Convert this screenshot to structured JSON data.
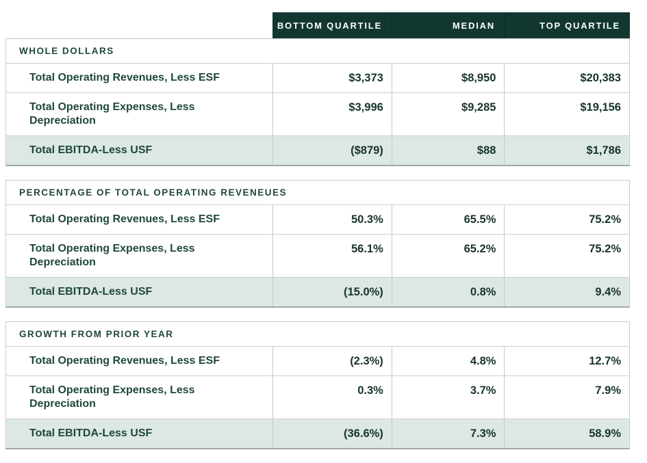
{
  "table": {
    "columns": [
      "BOTTOM QUARTILE",
      "MEDIAN",
      "TOP QUARTILE"
    ],
    "sections": [
      {
        "title": "WHOLE DOLLARS",
        "rows": [
          {
            "label": "Total Operating Revenues, Less ESF",
            "values": [
              "$3,373",
              "$8,950",
              "$20,383"
            ],
            "highlight": false
          },
          {
            "label": "Total Operating Expenses, Less Depreciation",
            "values": [
              "$3,996",
              "$9,285",
              "$19,156"
            ],
            "highlight": false
          },
          {
            "label": "Total EBITDA-Less USF",
            "values": [
              "($879)",
              "$88",
              "$1,786"
            ],
            "highlight": true
          }
        ]
      },
      {
        "title": "PERCENTAGE OF TOTAL OPERATING REVENEUES",
        "rows": [
          {
            "label": "Total Operating Revenues, Less ESF",
            "values": [
              "50.3%",
              "65.5%",
              "75.2%"
            ],
            "highlight": false
          },
          {
            "label": "Total Operating Expenses, Less Depreciation",
            "values": [
              "56.1%",
              "65.2%",
              "75.2%"
            ],
            "highlight": false
          },
          {
            "label": "Total EBITDA-Less USF",
            "values": [
              "(15.0%)",
              "0.8%",
              "9.4%"
            ],
            "highlight": true
          }
        ]
      },
      {
        "title": "GROWTH FROM PRIOR YEAR",
        "rows": [
          {
            "label": "Total Operating Revenues, Less ESF",
            "values": [
              "(2.3%)",
              "4.8%",
              "12.7%"
            ],
            "highlight": false
          },
          {
            "label": "Total Operating Expenses, Less Depreciation",
            "values": [
              "0.3%",
              "3.7%",
              "7.9%"
            ],
            "highlight": false
          },
          {
            "label": "Total EBITDA-Less USF",
            "values": [
              "(36.6%)",
              "7.3%",
              "58.9%"
            ],
            "highlight": true
          }
        ]
      }
    ]
  },
  "colors": {
    "column_header_bg": "#123731",
    "column_header_text": "#ffffff",
    "section_title_text": "#1e473e",
    "label_text": "#1e473e",
    "value_text": "#17332d",
    "highlight_row_bg": "#dde8e3",
    "grid_line": "#c9d0cd"
  },
  "chart_data": {
    "type": "table",
    "columns": [
      "Bottom Quartile",
      "Median",
      "Top Quartile"
    ],
    "sections": [
      {
        "title": "Whole Dollars",
        "unit": "USD",
        "rows": [
          {
            "label": "Total Operating Revenues, Less ESF",
            "values": [
              3373,
              8950,
              20383
            ]
          },
          {
            "label": "Total Operating Expenses, Less Depreciation",
            "values": [
              3996,
              9285,
              19156
            ]
          },
          {
            "label": "Total EBITDA-Less USF",
            "values": [
              -879,
              88,
              1786
            ]
          }
        ]
      },
      {
        "title": "Percentage of Total Operating Reveneues",
        "unit": "percent",
        "rows": [
          {
            "label": "Total Operating Revenues, Less ESF",
            "values": [
              50.3,
              65.5,
              75.2
            ]
          },
          {
            "label": "Total Operating Expenses, Less Depreciation",
            "values": [
              56.1,
              65.2,
              75.2
            ]
          },
          {
            "label": "Total EBITDA-Less USF",
            "values": [
              -15.0,
              0.8,
              9.4
            ]
          }
        ]
      },
      {
        "title": "Growth from Prior Year",
        "unit": "percent",
        "rows": [
          {
            "label": "Total Operating Revenues, Less ESF",
            "values": [
              -2.3,
              4.8,
              12.7
            ]
          },
          {
            "label": "Total Operating Expenses, Less Depreciation",
            "values": [
              0.3,
              3.7,
              7.9
            ]
          },
          {
            "label": "Total EBITDA-Less USF",
            "values": [
              -36.6,
              7.3,
              58.9
            ]
          }
        ]
      }
    ]
  }
}
